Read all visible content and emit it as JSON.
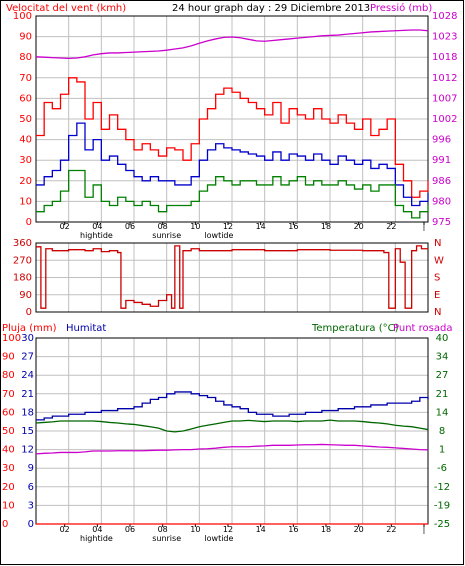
{
  "header": {
    "left": "Velocitat del vent (kmh)",
    "center": "24 hour graph day : 29 Diciembre 2013",
    "right": "Pressió (mb)"
  },
  "legend2": {
    "left1": "Pluja (mm)",
    "left2": "Humitat",
    "right1": "Temperatura (°C)",
    "right2": "Punt rosada"
  },
  "x_axis": {
    "hours": [
      "02",
      "04",
      "06",
      "08",
      "10",
      "12",
      "14",
      "16",
      "18",
      "20",
      "22",
      "|"
    ],
    "markers": [
      {
        "label": "hightide",
        "hour": 3.7
      },
      {
        "label": "sunrise",
        "hour": 8.0
      },
      {
        "label": "lowtide",
        "hour": 11.2
      }
    ]
  },
  "colors": {
    "gust": "#ff0000",
    "avg": "#0000cc",
    "min": "#008000",
    "pressure": "#cc00cc",
    "dir": "#cc0000",
    "humidity": "#0000aa",
    "temp": "#006600",
    "dew": "#cc00cc",
    "rain": "#ff0000",
    "grid": "#c0c0c0"
  },
  "chart_data": [
    {
      "type": "line",
      "title": "Velocitat del vent (kmh) / Pressió (mb)",
      "xlabel": "",
      "ylabel": "Velocitat del vent (kmh)",
      "y2label": "Pressió (mb)",
      "xlim": [
        0,
        24
      ],
      "ylim": [
        0,
        100
      ],
      "y2lim": [
        975,
        1028
      ],
      "yticks": [
        0,
        10,
        20,
        30,
        40,
        50,
        60,
        70,
        80,
        90,
        100
      ],
      "y2ticks": [
        975,
        980,
        986,
        991,
        996,
        1002,
        1007,
        1012,
        1018,
        1023,
        1028
      ],
      "x_hours": [
        0,
        0.5,
        1,
        1.5,
        2,
        2.5,
        3,
        3.5,
        4,
        4.5,
        5,
        5.5,
        6,
        6.5,
        7,
        7.5,
        8,
        8.5,
        9,
        9.5,
        10,
        10.5,
        11,
        11.5,
        12,
        12.5,
        13,
        13.5,
        14,
        14.5,
        15,
        15.5,
        16,
        16.5,
        17,
        17.5,
        18,
        18.5,
        19,
        19.5,
        20,
        20.5,
        21,
        21.5,
        22,
        22.5,
        23,
        23.5,
        24
      ],
      "series": [
        {
          "name": "gust",
          "axis": "left",
          "values": [
            42,
            58,
            55,
            62,
            70,
            68,
            50,
            58,
            45,
            52,
            45,
            40,
            35,
            38,
            35,
            32,
            36,
            35,
            30,
            38,
            50,
            55,
            62,
            65,
            63,
            60,
            58,
            55,
            52,
            58,
            48,
            55,
            52,
            50,
            55,
            50,
            48,
            52,
            48,
            45,
            50,
            42,
            45,
            50,
            28,
            20,
            12,
            15,
            20
          ]
        },
        {
          "name": "avg",
          "axis": "left",
          "values": [
            18,
            22,
            25,
            30,
            42,
            48,
            35,
            40,
            30,
            32,
            28,
            25,
            22,
            20,
            22,
            20,
            20,
            18,
            18,
            22,
            30,
            35,
            38,
            36,
            35,
            34,
            33,
            32,
            30,
            34,
            30,
            33,
            32,
            30,
            33,
            30,
            28,
            32,
            30,
            28,
            30,
            26,
            28,
            26,
            18,
            12,
            8,
            10,
            14
          ]
        },
        {
          "name": "min",
          "axis": "left",
          "values": [
            5,
            8,
            10,
            15,
            25,
            25,
            12,
            18,
            10,
            8,
            12,
            10,
            8,
            10,
            8,
            5,
            8,
            8,
            8,
            10,
            15,
            18,
            22,
            20,
            18,
            20,
            20,
            18,
            18,
            22,
            18,
            20,
            22,
            18,
            20,
            18,
            18,
            20,
            18,
            16,
            18,
            15,
            18,
            18,
            8,
            5,
            2,
            5,
            8
          ]
        },
        {
          "name": "pressure",
          "axis": "right",
          "values": [
            1017.5,
            1017.4,
            1017.3,
            1017.2,
            1017.1,
            1017.2,
            1017.5,
            1018.0,
            1018.3,
            1018.5,
            1018.5,
            1018.6,
            1018.7,
            1018.8,
            1018.9,
            1019.0,
            1019.2,
            1019.5,
            1019.8,
            1020.3,
            1021.0,
            1021.6,
            1022.1,
            1022.5,
            1022.6,
            1022.4,
            1022.0,
            1021.6,
            1021.5,
            1021.7,
            1021.9,
            1022.1,
            1022.3,
            1022.5,
            1022.7,
            1022.9,
            1023.0,
            1023.1,
            1023.3,
            1023.5,
            1023.7,
            1023.9,
            1024.0,
            1024.1,
            1024.2,
            1024.3,
            1024.4,
            1024.4,
            1024.2
          ]
        }
      ]
    },
    {
      "type": "line",
      "title": "",
      "xlabel": "",
      "ylabel": "",
      "xlim": [
        0,
        24
      ],
      "ylim": [
        0,
        360
      ],
      "yticks": [
        0,
        90,
        180,
        270,
        360
      ],
      "yticklabels": [
        "0",
        "90",
        "180",
        "270",
        "360"
      ],
      "y2ticklabels": [
        "N",
        "E",
        "S",
        "W",
        "N"
      ],
      "x_hours": [
        0,
        0.3,
        0.6,
        1,
        2,
        3,
        3.5,
        4,
        4.5,
        5,
        5.2,
        5.5,
        6,
        6.5,
        7,
        7.5,
        8,
        8.3,
        8.5,
        8.8,
        9,
        9.5,
        10,
        12,
        14,
        16,
        18,
        20,
        21,
        21.3,
        21.6,
        22,
        22.3,
        22.6,
        23,
        23.3,
        23.6,
        24
      ],
      "series": [
        {
          "name": "direction",
          "values": [
            340,
            20,
            330,
            320,
            325,
            320,
            330,
            315,
            320,
            310,
            20,
            60,
            50,
            40,
            30,
            60,
            90,
            20,
            345,
            20,
            320,
            330,
            320,
            325,
            320,
            325,
            322,
            320,
            320,
            310,
            20,
            330,
            260,
            20,
            320,
            345,
            330,
            330
          ]
        }
      ]
    },
    {
      "type": "line",
      "title": "",
      "xlabel": "",
      "ylabel": "Pluja (mm)",
      "y2label": "Temperatura (°C)",
      "xlim": [
        0,
        24
      ],
      "ylim_rain": [
        0,
        30
      ],
      "ylim_humidity": [
        0,
        100
      ],
      "ylim_temp": [
        -25,
        40
      ],
      "yticks_rain": [
        0,
        3,
        6,
        9,
        12,
        15,
        18,
        21,
        24,
        27,
        30
      ],
      "yticks_humidity": [
        0,
        10,
        20,
        30,
        40,
        50,
        60,
        70,
        80,
        90,
        100
      ],
      "yticks_temp": [
        -25,
        -19,
        -12,
        -6,
        1,
        8,
        14,
        21,
        27,
        34,
        40
      ],
      "x_hours": [
        0,
        0.5,
        1,
        1.5,
        2,
        2.5,
        3,
        3.5,
        4,
        4.5,
        5,
        5.5,
        6,
        6.5,
        7,
        7.5,
        8,
        8.5,
        9,
        9.5,
        10,
        10.5,
        11,
        11.5,
        12,
        12.5,
        13,
        13.5,
        14,
        14.5,
        15,
        15.5,
        16,
        16.5,
        17,
        17.5,
        18,
        18.5,
        19,
        19.5,
        20,
        20.5,
        21,
        21.5,
        22,
        22.5,
        23,
        23.5,
        24
      ],
      "series": [
        {
          "name": "Pluja (mm)",
          "axis": "rain",
          "values": [
            0,
            0,
            0,
            0,
            0,
            0,
            0,
            0,
            0,
            0,
            0,
            0,
            0,
            0,
            0,
            0,
            0,
            0,
            0,
            0,
            0,
            0,
            0,
            0,
            0,
            0,
            0,
            0,
            0,
            0,
            0,
            0,
            0,
            0,
            0,
            0,
            0,
            0,
            0,
            0,
            0,
            0,
            0,
            0,
            0,
            0,
            0,
            0,
            0
          ]
        },
        {
          "name": "Humitat",
          "axis": "humidity",
          "values": [
            56,
            57,
            58,
            58,
            59,
            59,
            60,
            60,
            61,
            61,
            62,
            62,
            63,
            65,
            67,
            68,
            70,
            71,
            71,
            70,
            69,
            68,
            66,
            64,
            63,
            62,
            60,
            59,
            59,
            58,
            58,
            59,
            59,
            60,
            60,
            61,
            61,
            62,
            62,
            63,
            63,
            64,
            64,
            65,
            65,
            65,
            66,
            68,
            67
          ]
        },
        {
          "name": "Temperatura (°C)",
          "axis": "temp",
          "values": [
            10.3,
            10.5,
            10.7,
            11,
            11,
            11,
            11,
            11,
            10.8,
            10.5,
            10.3,
            10,
            9.8,
            9.4,
            9,
            8.5,
            7.5,
            7.2,
            7.5,
            8.2,
            9,
            9.5,
            10,
            10.5,
            11,
            11,
            11.2,
            11,
            10.8,
            11,
            11,
            11,
            10.8,
            11,
            11,
            11,
            11.3,
            11,
            11,
            11,
            10.8,
            10.5,
            10.3,
            10,
            9.5,
            9.2,
            9,
            8.5,
            8
          ]
        },
        {
          "name": "Punt rosada",
          "axis": "temp",
          "values": [
            -0.5,
            -0.3,
            -0.2,
            0,
            0,
            0,
            0.2,
            0.5,
            0.5,
            0.5,
            0.6,
            0.6,
            0.6,
            0.6,
            0.7,
            0.8,
            0.8,
            0.9,
            1,
            1,
            1.2,
            1.3,
            1.5,
            1.8,
            2,
            2,
            2,
            2.2,
            2.3,
            2.5,
            2.5,
            2.5,
            2.6,
            2.7,
            2.7,
            2.8,
            2.7,
            2.6,
            2.5,
            2.5,
            2.3,
            2.1,
            1.9,
            1.8,
            1.6,
            1.4,
            1.2,
            1.0,
            0.9
          ]
        }
      ]
    }
  ]
}
